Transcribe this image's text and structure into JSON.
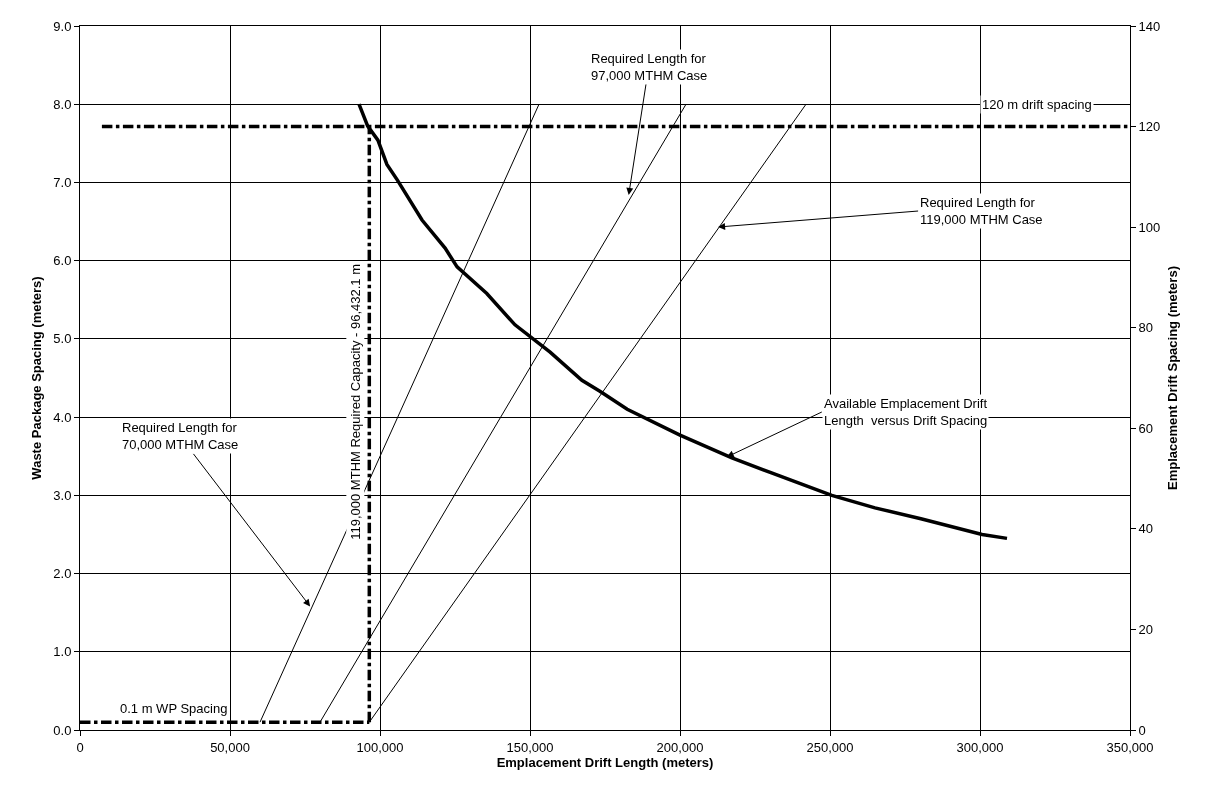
{
  "chart_data": {
    "type": "line",
    "xlabel": "Emplacement Drift Length (meters)",
    "ylabel": "Waste Package Spacing (meters)",
    "y2label": "Emplacement Drift Spacing (meters)",
    "xlim": [
      0,
      350000
    ],
    "xticks": [
      {
        "value": 0,
        "label": "0"
      },
      {
        "value": 50000,
        "label": "50,000"
      },
      {
        "value": 100000,
        "label": "100,000"
      },
      {
        "value": 150000,
        "label": "150,000"
      },
      {
        "value": 200000,
        "label": "200,000"
      },
      {
        "value": 250000,
        "label": "250,000"
      },
      {
        "value": 300000,
        "label": "300,000"
      },
      {
        "value": 350000,
        "label": "350,000"
      }
    ],
    "ylim": [
      0,
      9
    ],
    "yticks": [
      {
        "value": 0,
        "label": "0.0"
      },
      {
        "value": 1,
        "label": "1.0"
      },
      {
        "value": 2,
        "label": "2.0"
      },
      {
        "value": 3,
        "label": "3.0"
      },
      {
        "value": 4,
        "label": "4.0"
      },
      {
        "value": 5,
        "label": "5.0"
      },
      {
        "value": 6,
        "label": "6.0"
      },
      {
        "value": 7,
        "label": "7.0"
      },
      {
        "value": 8,
        "label": "8.0"
      },
      {
        "value": 9,
        "label": "9.0"
      }
    ],
    "y2lim": [
      0,
      140
    ],
    "y2ticks": [
      0,
      20,
      40,
      60,
      80,
      100,
      120,
      140
    ],
    "grid": true,
    "marker": "none",
    "series": [
      {
        "color": "#000000",
        "line_style": "solid",
        "x": [
          93000,
          95900,
          99300,
          102300,
          105800,
          114000,
          121700,
          125700,
          135600,
          145000,
          156700,
          167300,
          173300,
          182400,
          200000,
          217300,
          230300,
          250600,
          265000,
          280300,
          300700,
          309000
        ],
        "values": [
          8.0,
          7.72,
          7.54,
          7.23,
          7.03,
          6.52,
          6.16,
          5.92,
          5.58,
          5.18,
          4.83,
          4.47,
          4.33,
          4.1,
          3.77,
          3.48,
          3.29,
          3.0,
          2.84,
          2.7,
          2.5,
          2.45
        ]
      },
      {
        "color": "#000000",
        "line_style": "solid",
        "x": [
          60000,
          153000
        ],
        "values": [
          0.1,
          8.0
        ]
      },
      {
        "color": "#000000",
        "line_style": "solid",
        "x": [
          80000,
          202000
        ],
        "values": [
          0.1,
          8.0
        ]
      },
      {
        "color": "#000000",
        "line_style": "solid",
        "x": [
          96432.1,
          242000
        ],
        "values": [
          0.1,
          8.0
        ]
      },
      {
        "color": "#000000",
        "line_style": "dashed",
        "axis": "y2",
        "x": [
          7300,
          350000
        ],
        "values": [
          120,
          120
        ]
      },
      {
        "color": "#000000",
        "line_style": "dashed",
        "x": [
          0,
          96432.1
        ],
        "values": [
          0.1,
          0.1
        ]
      },
      {
        "color": "#000000",
        "line_style": "dashed",
        "x": [
          96432.1,
          96432.1
        ],
        "values": [
          0.1,
          7.71
        ]
      }
    ],
    "annotations": [
      {
        "text": "Required Length for\n97,000 MTHM Case",
        "x": 182900,
        "y": 6.84
      },
      {
        "text": "Required Length for\n119,000 MTHM Case",
        "x": 212700,
        "y": 6.43
      },
      {
        "text": "Available Emplacement Drift\nLength  versus Drift Spacing",
        "x": 215600,
        "y": 3.49
      },
      {
        "text": "Required Length for\n70,000 MTHM Case",
        "x": 76700,
        "y": 1.58
      },
      {
        "text": "119,000 MTHM Required Capacity - 96,432.1 m",
        "x": 96432.1,
        "y": 4.2
      },
      {
        "text": "0.1 m WP Spacing",
        "x": 31000,
        "y": 0.1
      },
      {
        "text": "120 m drift spacing",
        "x": 319000,
        "y": 7.71
      }
    ]
  }
}
